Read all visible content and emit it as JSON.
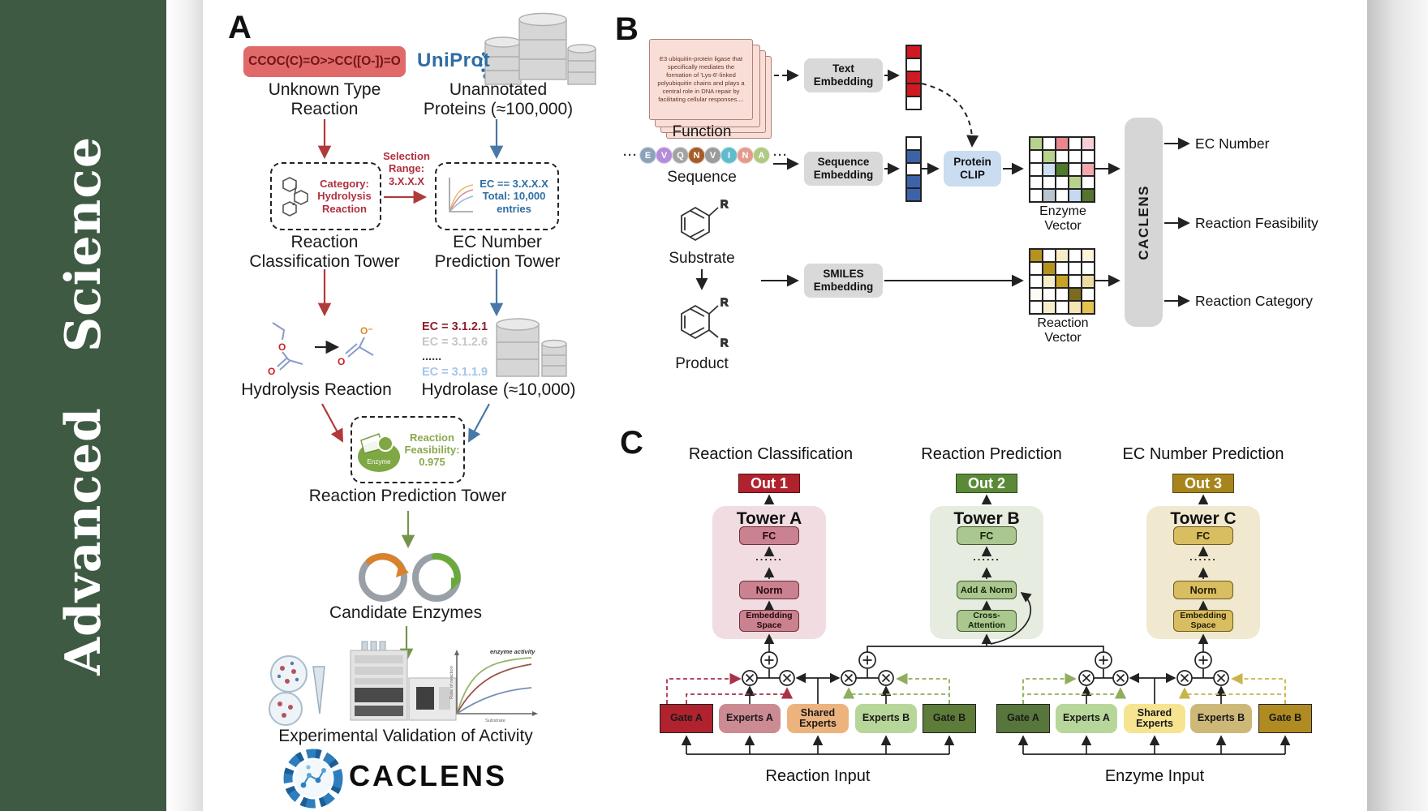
{
  "journal": {
    "name": "Advanced  Science"
  },
  "colors": {
    "sidebar_green": "#3e5a43",
    "smiles_red": "#e06a6a",
    "uniprot_blue": "#2e6da4",
    "arrow_red": "#b03a3a",
    "arrow_blue": "#4878a8",
    "arrow_green": "#74944c",
    "out1_red": "#b0222e",
    "out2_green": "#5a8a38",
    "out3_gold": "#a8851c"
  },
  "panel_a": {
    "label": "A",
    "smiles": "CCOC(C)=O>>CC([O-])=O",
    "unknown_reaction": "Unknown Type\nReaction",
    "uniprot": "UniProt",
    "unannotated": "Unannotated\nProteins (≈100,000)",
    "selection": "Selection\nRange:\n3.X.X.X",
    "category": "Category:\nHydrolysis\nReaction",
    "ec_range": "EC == 3.X.X.X\nTotal: 10,000\nentries",
    "tower_classification": "Reaction\nClassification Tower",
    "tower_ec": "EC Number\nPrediction Tower",
    "ec_list": [
      {
        "text": "EC = 3.1.2.1",
        "color": "#8d1f2d"
      },
      {
        "text": "EC = 3.1.2.6",
        "color": "#c6c6c6"
      },
      {
        "text": "......",
        "color": "#3a3a3a"
      },
      {
        "text": "EC = 3.1.1.9",
        "color": "#a3c6e8"
      }
    ],
    "hydrolysis": "Hydrolysis Reaction",
    "hydrolase": "Hydrolase (≈10,000)",
    "enzyme_badge": "Enzyme",
    "feasibility": "Reaction\nFeasibility:\n0.975",
    "tower_prediction": "Reaction Prediction Tower",
    "candidates": "Candidate Enzymes",
    "validation": "Experimental Validation of Activity",
    "brand": "CACLENS",
    "atoms": {
      "o": "O",
      "o_minus": "O⁻"
    },
    "minichart": {
      "annotation": "enzyme activity",
      "ylabel": "Rate of reaction",
      "xlabel": "Substrate"
    }
  },
  "panel_b": {
    "label": "B",
    "function_card": "E3 ubiquitin-protein ligase that specifically mediates the formation of 'Lys-6'-linked polyubiquitin chains and plays a central role in DNA repair by facilitating cellular responses....",
    "function": "Function",
    "sequence": "Sequence",
    "substrate": "Substrate",
    "product": "Product",
    "r_label": "R",
    "ellipsis": "···",
    "residues": [
      {
        "letter": "E",
        "color": "#8ba3ba"
      },
      {
        "letter": "V",
        "color": "#b48cd9"
      },
      {
        "letter": "Q",
        "color": "#a3a3a3"
      },
      {
        "letter": "N",
        "color": "#a55c28"
      },
      {
        "letter": "V",
        "color": "#9c9c9c"
      },
      {
        "letter": "I",
        "color": "#5fbccc"
      },
      {
        "letter": "N",
        "color": "#e49b8d"
      },
      {
        "letter": "A",
        "color": "#aeca84"
      }
    ],
    "text_embedding": "Text\nEmbedding",
    "sequence_embedding": "Sequence\nEmbedding",
    "smiles_embedding": "SMILES\nEmbedding",
    "protein_clip": "Protein\nCLIP",
    "enzyme_vector": "Enzyme Vector",
    "reaction_vector": "Reaction Vector",
    "caclens": "CACLENS",
    "outputs": [
      "EC Number",
      "Reaction Feasibility",
      "Reaction Category"
    ],
    "vectors": {
      "text": [
        "#d01a22",
        "#ffffff",
        "#d01a22",
        "#d01a22",
        "#ffffff"
      ],
      "sequence": [
        "#ffffff",
        "#3c63a8",
        "#ffffff",
        "#3c63a8",
        "#3c63a8"
      ],
      "enzyme": [
        "#b7d28c",
        "#ffffff",
        "#e8878c",
        "#ffffff",
        "#f6cfd4",
        "#ffffff",
        "#b7d28c",
        "#ffffff",
        "#ffffff",
        "#ffffff",
        "#ffffff",
        "#cfdff2",
        "#4d7a2d",
        "#ffffff",
        "#f1a9ae",
        "#ffffff",
        "#ffffff",
        "#ffffff",
        "#b7d28c",
        "#ffffff",
        "#ffffff",
        "#b9c5ce",
        "#ffffff",
        "#c5daf2",
        "#55742e"
      ],
      "reaction": [
        "#b6921f",
        "#ffffff",
        "#f6eecb",
        "#ffffff",
        "#fbf5dd",
        "#ffffff",
        "#b6921f",
        "#ffffff",
        "#ffffff",
        "#ffffff",
        "#ffffff",
        "#f6eecb",
        "#c8a227",
        "#ffffff",
        "#ecdca4",
        "#fdfbf3",
        "#ffffff",
        "#ffffff",
        "#7b6b1f",
        "#ffffff",
        "#ffffff",
        "#f6eecb",
        "#ffffff",
        "#f4e7b4",
        "#e4c250"
      ]
    }
  },
  "panel_c": {
    "label": "C",
    "towers": [
      {
        "title": "Reaction Classification",
        "out": "Out 1",
        "name": "Tower A",
        "fc": "FC",
        "dots": "......",
        "mid": "Norm",
        "bottom": "Embedding\nSpace"
      },
      {
        "title": "Reaction Prediction",
        "out": "Out 2",
        "name": "Tower B",
        "fc": "FC",
        "dots": "......",
        "mid": "Add & Norm",
        "bottom": "Cross-\nAttention"
      },
      {
        "title": "EC Number Prediction",
        "out": "Out 3",
        "name": "Tower C",
        "fc": "FC",
        "dots": "......",
        "mid": "Norm",
        "bottom": "Embedding\nSpace"
      }
    ],
    "groups": [
      {
        "input": "Reaction Input",
        "gate_a": "Gate A",
        "experts_a": "Experts A",
        "shared": "Shared\nExperts",
        "experts_b": "Experts B",
        "gate_b": "Gate B"
      },
      {
        "input": "Enzyme Input",
        "gate_a": "Gate A",
        "experts_a": "Experts A",
        "shared": "Shared\nExperts",
        "experts_b": "Experts B",
        "gate_b": "Gate B"
      }
    ]
  }
}
